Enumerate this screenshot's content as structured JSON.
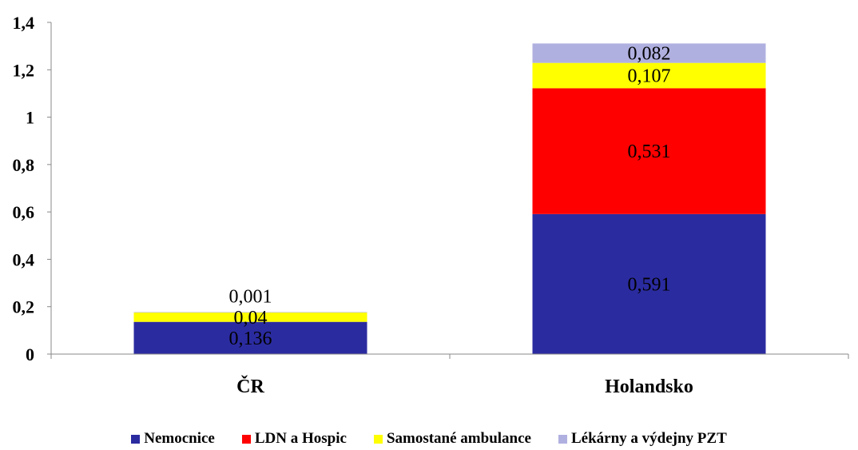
{
  "chart_data": {
    "type": "bar",
    "stacked": true,
    "categories": [
      "ČR",
      "Holandsko"
    ],
    "series": [
      {
        "name": "Nemocnice",
        "color": "#2b2ba0",
        "values": [
          0.136,
          0.591
        ],
        "labels": [
          "0,136",
          "0,591"
        ]
      },
      {
        "name": "LDN a Hospic",
        "color": "#ff0000",
        "values": [
          0.0,
          0.531
        ],
        "labels": [
          "",
          "0,531"
        ]
      },
      {
        "name": "Samostané ambulance",
        "color": "#ffff00",
        "values": [
          0.04,
          0.107
        ],
        "labels": [
          "0,04",
          "0,107"
        ]
      },
      {
        "name": "Lékárny a výdejny PZT",
        "color": "#b0b0e0",
        "values": [
          0.001,
          0.082
        ],
        "labels": [
          "0,001",
          "0,082"
        ]
      }
    ],
    "ylim": [
      0,
      1.4
    ],
    "yticks": [
      0,
      0.2,
      0.4,
      0.6,
      0.8,
      1.0,
      1.2,
      1.4
    ],
    "ytick_labels": [
      "0",
      "0,2",
      "0,4",
      "0,6",
      "0,8",
      "1",
      "1,2",
      "1,4"
    ],
    "legend_position": "bottom",
    "grid": false
  }
}
